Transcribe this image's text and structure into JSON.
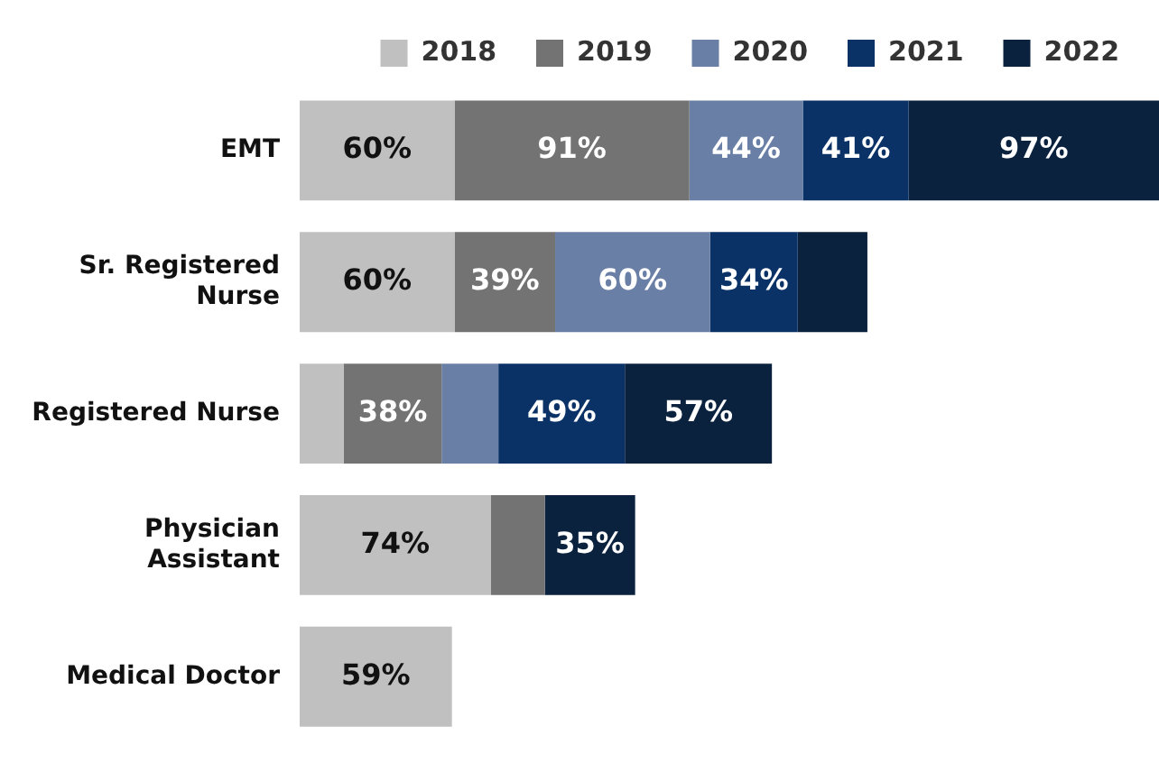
{
  "chart_data": {
    "type": "bar",
    "orientation": "horizontal",
    "stacked": true,
    "legend": "top",
    "tick_labels": "y",
    "categories": [
      "EMT",
      "Sr. Registered Nurse",
      "Registered Nurse",
      "Physician Assistant",
      "Medical Doctor"
    ],
    "series": [
      {
        "name": "2018",
        "color": "#c0c0c0",
        "values": [
          60,
          60,
          17,
          74,
          59
        ],
        "value_labels": [
          "60%",
          "60%",
          null,
          "74%",
          "59%"
        ]
      },
      {
        "name": "2019",
        "color": "#737373",
        "values": [
          91,
          39,
          38,
          21,
          null
        ],
        "value_labels": [
          "91%",
          "39%",
          "38%",
          null,
          null
        ]
      },
      {
        "name": "2020",
        "color": "#6a7fa6",
        "values": [
          44,
          60,
          22,
          null,
          null
        ],
        "value_labels": [
          "44%",
          "60%",
          null,
          null,
          null
        ]
      },
      {
        "name": "2021",
        "color": "#0a3266",
        "values": [
          41,
          34,
          49,
          null,
          null
        ],
        "value_labels": [
          "41%",
          "34%",
          "49%",
          null,
          null
        ]
      },
      {
        "name": "2022",
        "color": "#0b223f",
        "values": [
          97,
          27,
          57,
          35,
          null
        ],
        "value_labels": [
          "97%",
          null,
          "57%",
          "35%",
          null
        ]
      }
    ]
  }
}
